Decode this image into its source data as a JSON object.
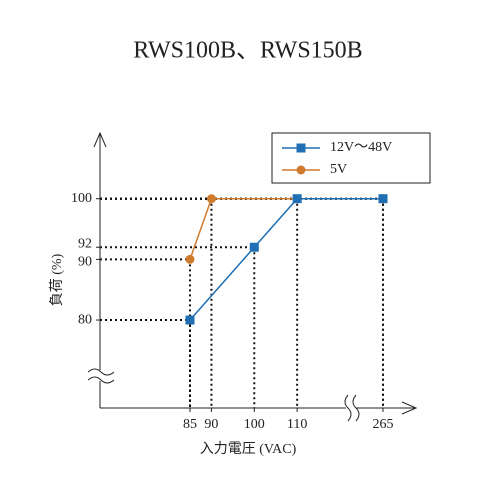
{
  "chart_data": {
    "type": "line",
    "title": "RWS100B、RWS150B",
    "xlabel": "入力電圧 (VAC)",
    "ylabel": "負荷 (%)",
    "xlim": [
      64,
      120
    ],
    "xticks": [
      85,
      90,
      100,
      110,
      265
    ],
    "ylim": [
      65.5,
      110.5
    ],
    "yticks": [
      80,
      90,
      92,
      100
    ],
    "x_axis_break": true,
    "y_axis_break": true,
    "legend": "upper right",
    "series": [
      {
        "name": "12V～48V",
        "color": "#1f6fb2",
        "marker": "square",
        "x": [
          85,
          100,
          110,
          265
        ],
        "values": [
          80,
          92,
          100,
          100
        ]
      },
      {
        "name": "5V",
        "color": "#cf7a2c",
        "marker": "circle",
        "x": [
          85,
          90,
          265
        ],
        "values": [
          90,
          100,
          100
        ]
      }
    ]
  }
}
